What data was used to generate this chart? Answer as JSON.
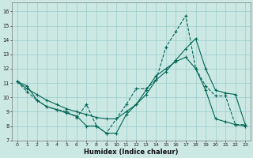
{
  "xlabel": "Humidex (Indice chaleur)",
  "background_color": "#cce8e3",
  "grid_color": "#99cccc",
  "line_color": "#006655",
  "xlim": [
    -0.5,
    23.5
  ],
  "ylim": [
    7.0,
    16.6
  ],
  "yticks": [
    7,
    8,
    9,
    10,
    11,
    12,
    13,
    14,
    15,
    16
  ],
  "xticks": [
    0,
    1,
    2,
    3,
    4,
    5,
    6,
    7,
    8,
    9,
    10,
    11,
    12,
    13,
    14,
    15,
    16,
    17,
    18,
    19,
    20,
    21,
    22,
    23
  ],
  "line1_x": [
    0,
    1,
    2,
    3,
    4,
    5,
    6,
    7,
    8,
    9,
    10,
    11,
    12,
    13,
    14,
    15,
    16,
    17,
    18,
    19,
    20,
    21,
    22,
    23
  ],
  "line1_y": [
    11.1,
    10.4,
    9.8,
    9.35,
    9.15,
    9.0,
    8.6,
    9.5,
    8.0,
    7.5,
    8.5,
    9.5,
    10.6,
    10.6,
    11.2,
    13.5,
    14.6,
    15.7,
    12.0,
    10.8,
    10.1,
    10.1,
    8.1,
    8.1
  ],
  "line2_x": [
    0,
    1,
    2,
    3,
    4,
    5,
    6,
    7,
    8,
    9,
    10,
    11,
    12,
    13,
    14,
    15,
    16,
    17,
    18,
    19,
    20,
    21,
    22,
    23
  ],
  "line2_y": [
    11.1,
    10.6,
    10.2,
    9.8,
    9.5,
    9.2,
    9.0,
    8.8,
    8.6,
    8.5,
    8.5,
    9.0,
    9.5,
    10.2,
    11.2,
    11.8,
    12.6,
    13.4,
    14.1,
    12.0,
    10.5,
    10.3,
    10.2,
    8.1
  ],
  "line3_x": [
    0,
    1,
    2,
    3,
    4,
    5,
    6,
    7,
    8,
    9,
    10,
    11,
    12,
    13,
    14,
    15,
    16,
    17,
    18,
    19,
    20,
    21,
    22,
    23
  ],
  "line3_y": [
    11.1,
    10.8,
    9.8,
    9.35,
    9.15,
    8.9,
    8.7,
    8.0,
    8.0,
    7.5,
    7.5,
    8.8,
    9.5,
    10.5,
    11.5,
    12.0,
    12.5,
    12.8,
    12.0,
    10.5,
    8.5,
    8.3,
    8.1,
    8.0
  ]
}
